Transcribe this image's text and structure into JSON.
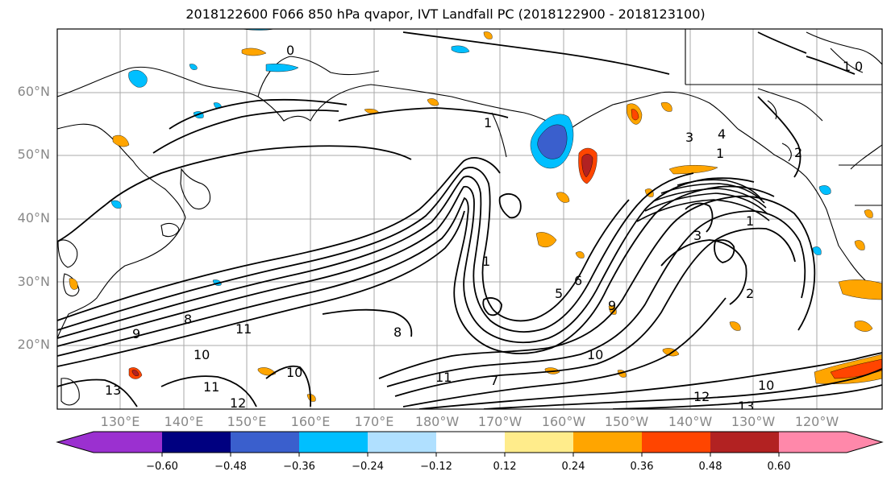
{
  "title": "2018122600 F066 850 hPa qvapor, IVT Landfall PC (2018122900 - 2018123100)",
  "map": {
    "lat_labels": [
      "60°N",
      "50°N",
      "40°N",
      "30°N",
      "20°N"
    ],
    "lon_labels": [
      "130°E",
      "140°E",
      "150°E",
      "160°E",
      "170°E",
      "180°W",
      "170°W",
      "160°W",
      "150°W",
      "140°W",
      "130°W",
      "120°W"
    ],
    "contour_labels": [
      "0",
      "1",
      "1",
      "1",
      "1",
      "2",
      "2",
      "3",
      "3",
      "4",
      "5",
      "6",
      "7",
      "8",
      "8",
      "9",
      "9",
      "10",
      "10",
      "10",
      "11",
      "11",
      "11",
      "12",
      "12",
      "13",
      "13",
      "0",
      "1",
      "10"
    ]
  },
  "colorbar": {
    "ticks": [
      "−0.60",
      "−0.48",
      "−0.36",
      "−0.24",
      "−0.12",
      "0.12",
      "0.24",
      "0.36",
      "0.48",
      "0.60"
    ],
    "colors": [
      "#9b30d0",
      "#000080",
      "#3a5fcd",
      "#00bfff",
      "#b0e0ff",
      "#ffffff",
      "#ffec8b",
      "#ffa500",
      "#ff4500",
      "#b22222",
      "#ff88aa"
    ]
  }
}
